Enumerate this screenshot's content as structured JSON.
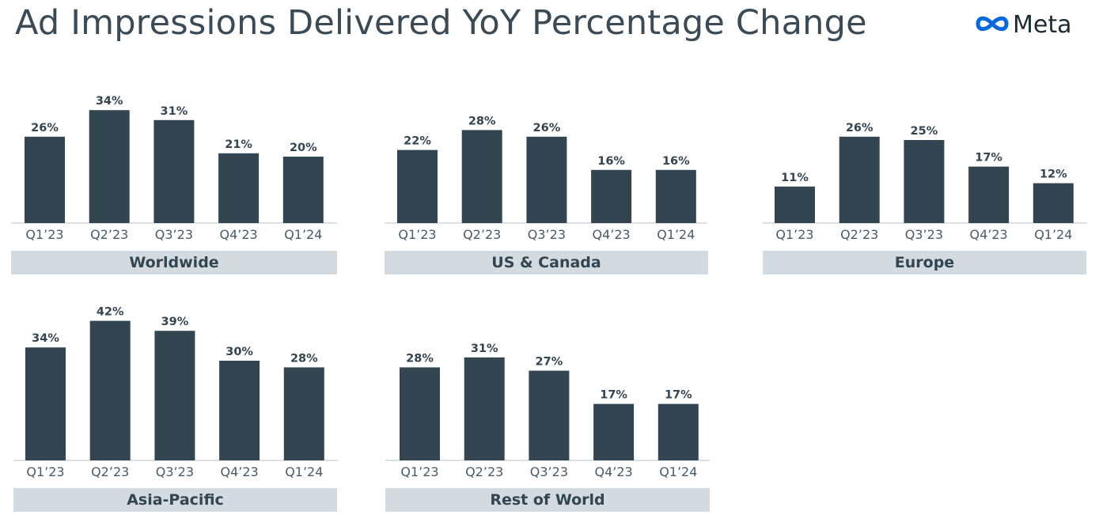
{
  "header": {
    "title": "Ad Impressions Delivered YoY Percentage Change",
    "logo_text": "Meta",
    "logo_color": "#0668E1"
  },
  "colors": {
    "bar": "#344552",
    "region_bar": "#d3dae0"
  },
  "chart_data": [
    {
      "type": "bar",
      "title": "Worldwide",
      "categories": [
        "Q1’23",
        "Q2’23",
        "Q3’23",
        "Q4’23",
        "Q1’24"
      ],
      "values": [
        26,
        34,
        31,
        21,
        20
      ],
      "labels": [
        "26%",
        "34%",
        "31%",
        "21%",
        "20%"
      ]
    },
    {
      "type": "bar",
      "title": "US & Canada",
      "categories": [
        "Q1’23",
        "Q2’23",
        "Q3’23",
        "Q4’23",
        "Q1’24"
      ],
      "values": [
        22,
        28,
        26,
        16,
        16
      ],
      "labels": [
        "22%",
        "28%",
        "26%",
        "16%",
        "16%"
      ]
    },
    {
      "type": "bar",
      "title": "Europe",
      "categories": [
        "Q1’23",
        "Q2’23",
        "Q3’23",
        "Q4’23",
        "Q1’24"
      ],
      "values": [
        11,
        26,
        25,
        17,
        12
      ],
      "labels": [
        "11%",
        "26%",
        "25%",
        "17%",
        "12%"
      ]
    },
    {
      "type": "bar",
      "title": "Asia-Pacific",
      "categories": [
        "Q1’23",
        "Q2’23",
        "Q3’23",
        "Q4’23",
        "Q1’24"
      ],
      "values": [
        34,
        42,
        39,
        30,
        28
      ],
      "labels": [
        "34%",
        "42%",
        "39%",
        "30%",
        "28%"
      ]
    },
    {
      "type": "bar",
      "title": "Rest of World",
      "categories": [
        "Q1’23",
        "Q2’23",
        "Q3’23",
        "Q4’23",
        "Q1’24"
      ],
      "values": [
        28,
        31,
        27,
        17,
        17
      ],
      "labels": [
        "28%",
        "31%",
        "27%",
        "17%",
        "17%"
      ]
    }
  ]
}
